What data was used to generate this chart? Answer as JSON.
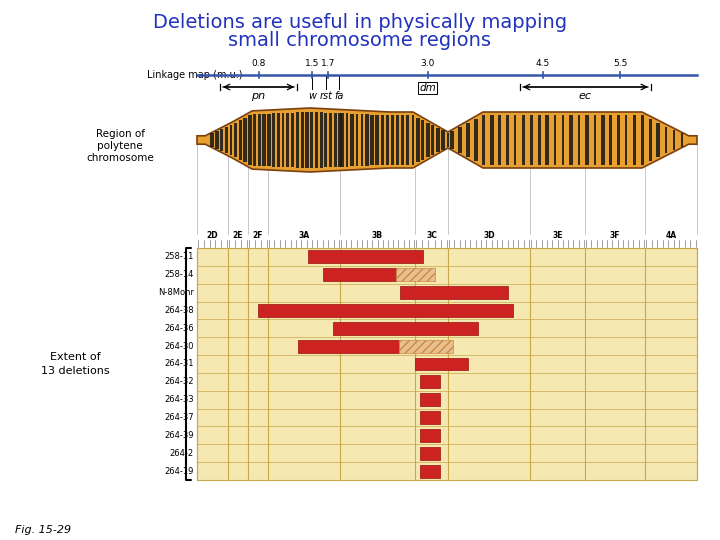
{
  "title_line1": "Deletions are useful in physically mapping",
  "title_line2": "small chromosome regions",
  "title_color": "#2233bb",
  "title_fontsize": 14,
  "fig_bg": "#ffffff",
  "caption": "Fig. 15-29",
  "linkage_label": "Linkage map (m.u.)",
  "band_sections": [
    "2D",
    "2E",
    "2F",
    "3A",
    "3B",
    "3C",
    "3D",
    "3E",
    "3F",
    "4A"
  ],
  "deletion_names": [
    "258-11",
    "258-14",
    "N-8Mohr",
    "264-38",
    "264-36",
    "264-30",
    "264-31",
    "264-32",
    "264-33",
    "264-37",
    "264-39",
    "264-2",
    "264-19"
  ],
  "bar_color": "#cc2222",
  "hatch_color": "#cc8844",
  "grid_bg": "#f5e8b0",
  "grid_line_color": "#c8a84b",
  "chrom_color": "#E8A030",
  "chrom_stripe": "#1a1a1a",
  "chrom_edge": "#7a4010"
}
